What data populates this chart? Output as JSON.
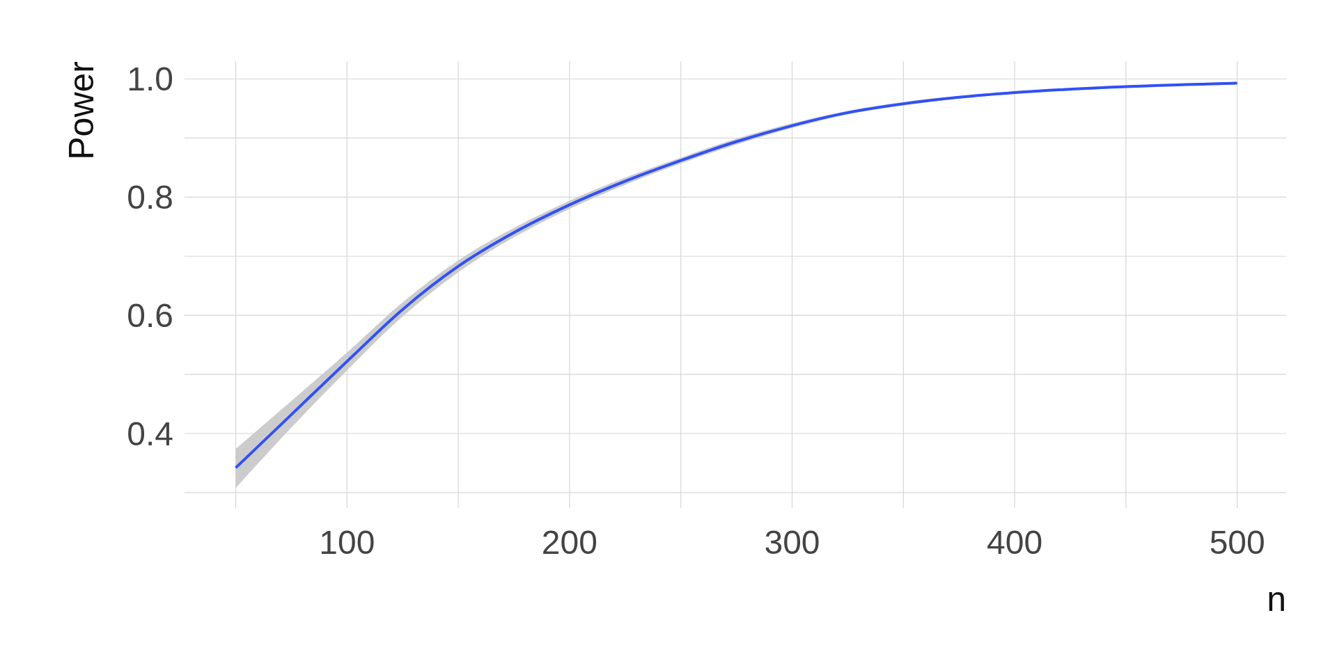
{
  "chart_data": {
    "type": "line",
    "xlabel": "n",
    "ylabel": "Power",
    "xlim": [
      27,
      522
    ],
    "ylim": [
      0.274,
      1.03
    ],
    "xticks": [
      {
        "value": 50,
        "label": null
      },
      100,
      {
        "value": 150,
        "label": null
      },
      200,
      {
        "value": 250,
        "label": null
      },
      300,
      {
        "value": 350,
        "label": null
      },
      400,
      {
        "value": 450,
        "label": null
      },
      500
    ],
    "yticks": [
      {
        "value": 0.3,
        "label": null
      },
      {
        "value": 0.4,
        "label": "0.4"
      },
      {
        "value": 0.5,
        "label": null
      },
      {
        "value": 0.6,
        "label": "0.6"
      },
      {
        "value": 0.7,
        "label": null
      },
      {
        "value": 0.8,
        "label": "0.8"
      },
      {
        "value": 0.9,
        "label": null
      },
      {
        "value": 1.0,
        "label": "1.0"
      }
    ],
    "grid": true,
    "marker": "none",
    "line_style": "solid",
    "series": [
      {
        "color": "#3050f8",
        "x": [
          50,
          75,
          100,
          125,
          150,
          175,
          200,
          225,
          250,
          275,
          300,
          325,
          350,
          375,
          400,
          450,
          500
        ],
        "values": [
          0.342,
          0.432,
          0.522,
          0.61,
          0.683,
          0.74,
          0.787,
          0.827,
          0.862,
          0.894,
          0.921,
          0.943,
          0.958,
          0.969,
          0.977,
          0.987,
          0.993
        ],
        "lower": [
          0.308,
          0.41,
          0.507,
          0.598,
          0.673,
          0.732,
          0.78,
          0.821,
          0.857,
          0.889,
          0.917,
          0.94,
          0.955,
          0.967,
          0.975,
          0.985,
          0.991
        ],
        "upper": [
          0.374,
          0.455,
          0.537,
          0.622,
          0.693,
          0.748,
          0.794,
          0.833,
          0.867,
          0.899,
          0.925,
          0.946,
          0.961,
          0.971,
          0.979,
          0.989,
          0.995
        ]
      }
    ]
  }
}
